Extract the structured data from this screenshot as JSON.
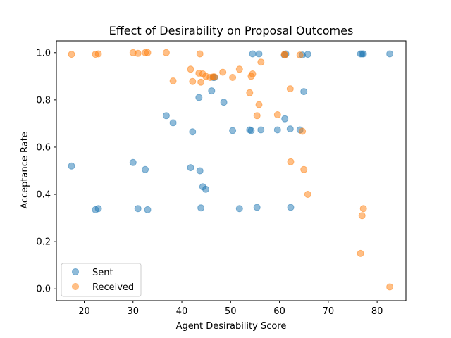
{
  "chart_data": {
    "type": "scatter",
    "title": "Effect of Desirability on Proposal Outcomes",
    "xlabel": "Agent Desirability Score",
    "ylabel": "Acceptance Rate",
    "xlim": [
      14.3,
      85.9
    ],
    "ylim": [
      -0.05,
      1.05
    ],
    "xticks": [
      20,
      30,
      40,
      50,
      60,
      70,
      80
    ],
    "yticks": [
      0.0,
      0.2,
      0.4,
      0.6,
      0.8,
      1.0
    ],
    "ytick_labels": [
      "0.0",
      "0.2",
      "0.4",
      "0.6",
      "0.8",
      "1.0"
    ],
    "grid": false,
    "legend_position": "lower-left",
    "series": [
      {
        "name": "Sent",
        "color": "#1f77b4",
        "points": [
          [
            17.4,
            0.52
          ],
          [
            22.3,
            0.335
          ],
          [
            22.9,
            0.34
          ],
          [
            30.0,
            0.535
          ],
          [
            31.0,
            0.34
          ],
          [
            32.5,
            0.505
          ],
          [
            33.0,
            0.335
          ],
          [
            36.8,
            0.733
          ],
          [
            38.2,
            0.703
          ],
          [
            41.8,
            0.513
          ],
          [
            42.2,
            0.665
          ],
          [
            43.5,
            0.81
          ],
          [
            43.7,
            0.5
          ],
          [
            43.9,
            0.343
          ],
          [
            44.3,
            0.432
          ],
          [
            44.9,
            0.422
          ],
          [
            46.1,
            0.838
          ],
          [
            46.4,
            0.895
          ],
          [
            46.7,
            0.895
          ],
          [
            48.6,
            0.79
          ],
          [
            50.4,
            0.67
          ],
          [
            51.8,
            0.34
          ],
          [
            53.9,
            0.673
          ],
          [
            54.2,
            0.67
          ],
          [
            54.5,
            0.995
          ],
          [
            55.4,
            0.345
          ],
          [
            55.8,
            0.995
          ],
          [
            56.2,
            0.673
          ],
          [
            59.6,
            0.673
          ],
          [
            61.0,
            0.99
          ],
          [
            61.1,
            0.72
          ],
          [
            61.3,
            0.995
          ],
          [
            62.2,
            0.677
          ],
          [
            62.3,
            0.345
          ],
          [
            64.2,
            0.673
          ],
          [
            64.7,
            0.99
          ],
          [
            65.0,
            0.835
          ],
          [
            65.8,
            0.993
          ],
          [
            76.6,
            0.995
          ],
          [
            76.9,
            0.995
          ],
          [
            77.2,
            0.995
          ],
          [
            82.6,
            0.995
          ]
        ]
      },
      {
        "name": "Received",
        "color": "#ff7f0e",
        "points": [
          [
            17.4,
            0.993
          ],
          [
            22.3,
            0.993
          ],
          [
            22.9,
            0.995
          ],
          [
            30.0,
            1.0
          ],
          [
            31.0,
            0.997
          ],
          [
            32.5,
            1.0
          ],
          [
            33.0,
            1.0
          ],
          [
            36.8,
            1.0
          ],
          [
            38.2,
            0.88
          ],
          [
            41.8,
            0.93
          ],
          [
            42.2,
            0.878
          ],
          [
            43.5,
            0.913
          ],
          [
            43.7,
            0.995
          ],
          [
            43.9,
            0.875
          ],
          [
            44.3,
            0.91
          ],
          [
            44.9,
            0.9
          ],
          [
            45.8,
            0.895
          ],
          [
            46.4,
            0.897
          ],
          [
            46.7,
            0.897
          ],
          [
            48.4,
            0.917
          ],
          [
            50.4,
            0.895
          ],
          [
            51.8,
            0.93
          ],
          [
            53.9,
            0.83
          ],
          [
            54.2,
            0.9
          ],
          [
            54.5,
            0.91
          ],
          [
            55.4,
            0.733
          ],
          [
            55.8,
            0.78
          ],
          [
            56.2,
            0.96
          ],
          [
            59.6,
            0.737
          ],
          [
            61.0,
            0.993
          ],
          [
            61.1,
            0.99
          ],
          [
            62.2,
            0.847
          ],
          [
            62.3,
            0.538
          ],
          [
            64.2,
            0.99
          ],
          [
            64.7,
            0.667
          ],
          [
            65.0,
            0.505
          ],
          [
            65.8,
            0.4
          ],
          [
            76.6,
            0.15
          ],
          [
            76.9,
            0.31
          ],
          [
            77.2,
            0.34
          ],
          [
            82.6,
            0.008
          ]
        ]
      }
    ]
  }
}
